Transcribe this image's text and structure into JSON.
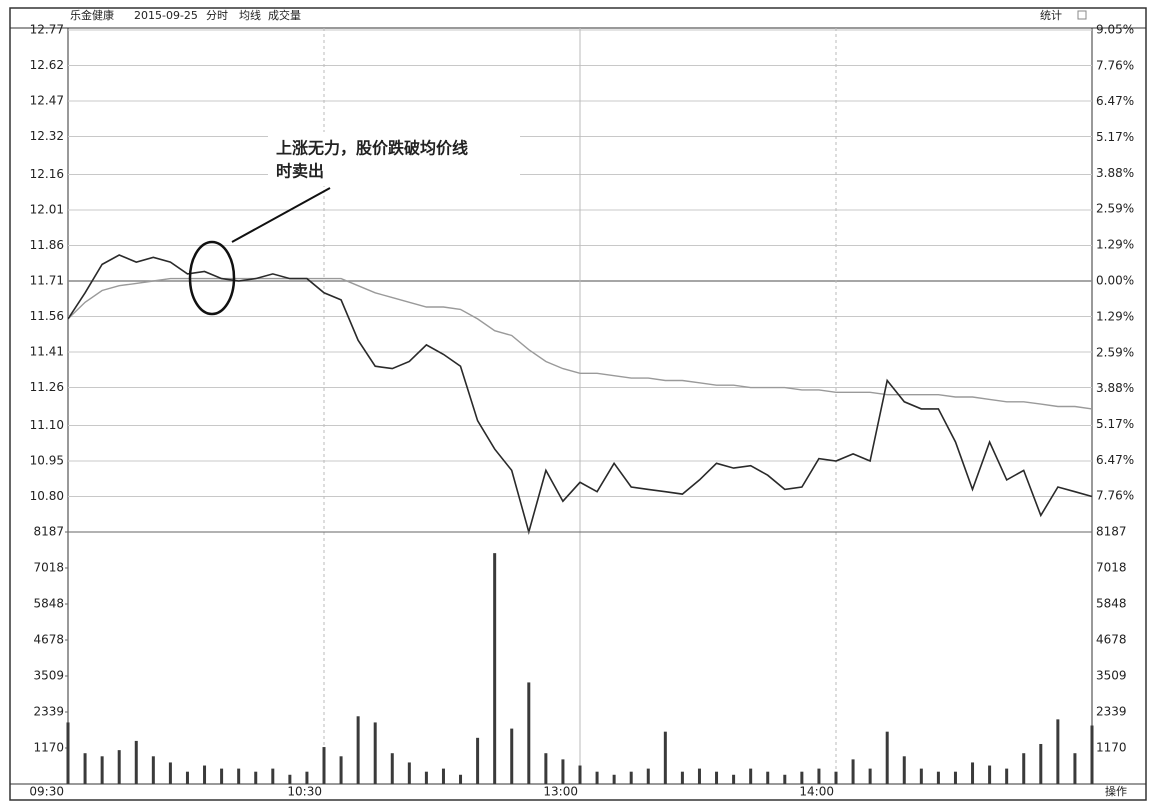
{
  "header": {
    "stock": "乐金健康",
    "date": "2015-09-25",
    "mode": "分时",
    "avg_tab": "均线",
    "vol_tab": "成交量",
    "stats": "统计",
    "ops": "操作"
  },
  "chart_data": [
    {
      "type": "line",
      "x": [
        0,
        4,
        8,
        12,
        16,
        20,
        24,
        28,
        32,
        36,
        40,
        44,
        48,
        52,
        56,
        60,
        64,
        68,
        72,
        76,
        80,
        84,
        88,
        92,
        96,
        100,
        104,
        108,
        112,
        116,
        120,
        124,
        128,
        132,
        136,
        140,
        144,
        148,
        152,
        156,
        160,
        164,
        168,
        172,
        176,
        180,
        184,
        188,
        192,
        196,
        200,
        204,
        208,
        212,
        216,
        220,
        224,
        228,
        232,
        236,
        240
      ],
      "xlim": [
        0,
        240
      ],
      "xticks": [
        {
          "value": 0,
          "label": "09:30"
        },
        {
          "value": 60,
          "label": "10:30"
        },
        {
          "value": 120,
          "label": "13:00"
        },
        {
          "value": 180,
          "label": "14:00"
        }
      ],
      "series": [
        {
          "color": "#2a2a2a",
          "values": [
            11.55,
            11.66,
            11.78,
            11.82,
            11.79,
            11.81,
            11.79,
            11.74,
            11.75,
            11.72,
            11.71,
            11.72,
            11.74,
            11.72,
            11.72,
            11.66,
            11.63,
            11.46,
            11.35,
            11.34,
            11.37,
            11.44,
            11.4,
            11.35,
            11.12,
            11.0,
            10.91,
            10.65,
            10.91,
            10.78,
            10.86,
            10.82,
            10.94,
            10.84,
            10.83,
            10.82,
            10.81,
            10.87,
            10.94,
            10.92,
            10.93,
            10.89,
            10.83,
            10.84,
            10.96,
            10.95,
            10.98,
            10.95,
            11.29,
            11.2,
            11.17,
            11.17,
            11.03,
            10.83,
            11.03,
            10.87,
            10.91,
            10.72,
            10.84,
            10.82,
            10.8
          ]
        },
        {
          "color": "#9a9a9a",
          "values": [
            11.55,
            11.62,
            11.67,
            11.69,
            11.7,
            11.71,
            11.72,
            11.72,
            11.72,
            11.72,
            11.72,
            11.72,
            11.72,
            11.72,
            11.72,
            11.72,
            11.72,
            11.69,
            11.66,
            11.64,
            11.62,
            11.6,
            11.6,
            11.59,
            11.55,
            11.5,
            11.48,
            11.42,
            11.37,
            11.34,
            11.32,
            11.32,
            11.31,
            11.3,
            11.3,
            11.29,
            11.29,
            11.28,
            11.27,
            11.27,
            11.26,
            11.26,
            11.26,
            11.25,
            11.25,
            11.24,
            11.24,
            11.24,
            11.23,
            11.23,
            11.23,
            11.23,
            11.22,
            11.22,
            11.21,
            11.2,
            11.2,
            11.19,
            11.18,
            11.18,
            11.17
          ]
        }
      ],
      "ylim": [
        10.65,
        12.77
      ],
      "yticks": [
        12.77,
        12.62,
        12.47,
        12.32,
        12.16,
        12.01,
        11.86,
        11.71,
        11.56,
        11.41,
        11.26,
        {
          "value": 11.1,
          "label": "11.10"
        },
        10.95,
        {
          "value": 10.8,
          "label": "10.80"
        }
      ],
      "y2lim": [
        -9.05,
        9.05
      ],
      "y2ticks": [
        {
          "value": 9.05,
          "label": "9.05%"
        },
        {
          "value": 7.76,
          "label": "7.76%"
        },
        {
          "value": 6.47,
          "label": "6.47%"
        },
        {
          "value": 5.17,
          "label": "5.17%"
        },
        {
          "value": 3.88,
          "label": "3.88%"
        },
        {
          "value": 2.59,
          "label": "2.59%"
        },
        {
          "value": 1.29,
          "label": "1.29%"
        },
        {
          "value": 0,
          "label": "0.00%"
        },
        {
          "value": -1.29,
          "label": "1.29%"
        },
        {
          "value": -2.59,
          "label": "2.59%"
        },
        {
          "value": -3.88,
          "label": "3.88%"
        },
        {
          "value": -5.17,
          "label": "5.17%"
        },
        {
          "value": -6.47,
          "label": "6.47%"
        },
        {
          "value": -7.76,
          "label": "7.76%"
        }
      ],
      "annotation": [
        "上涨无力，股价跌破均价线",
        "时卖出"
      ]
    },
    {
      "type": "bar",
      "x": [
        0,
        4,
        8,
        12,
        16,
        20,
        24,
        28,
        32,
        36,
        40,
        44,
        48,
        52,
        56,
        60,
        64,
        68,
        72,
        76,
        80,
        84,
        88,
        92,
        96,
        100,
        104,
        108,
        112,
        116,
        120,
        124,
        128,
        132,
        136,
        140,
        144,
        148,
        152,
        156,
        160,
        164,
        168,
        172,
        176,
        180,
        184,
        188,
        192,
        196,
        200,
        204,
        208,
        212,
        216,
        220,
        224,
        228,
        232,
        236,
        240
      ],
      "xlim": [
        0,
        240
      ],
      "color": "#3a3a3a",
      "values": [
        2000,
        1000,
        900,
        1100,
        1400,
        900,
        700,
        400,
        600,
        500,
        500,
        400,
        500,
        300,
        400,
        1200,
        900,
        2200,
        2000,
        1000,
        700,
        400,
        500,
        300,
        1500,
        7500,
        1800,
        3300,
        1000,
        800,
        600,
        400,
        300,
        400,
        500,
        1700,
        400,
        500,
        400,
        300,
        500,
        400,
        300,
        400,
        500,
        400,
        800,
        500,
        1700,
        900,
        500,
        400,
        400,
        700,
        600,
        500,
        1000,
        1300,
        2100,
        1000,
        1900
      ],
      "ylim": [
        0,
        8187
      ],
      "yticks": [
        8187,
        7018,
        5848,
        4678,
        3509,
        2339,
        1170
      ]
    }
  ]
}
